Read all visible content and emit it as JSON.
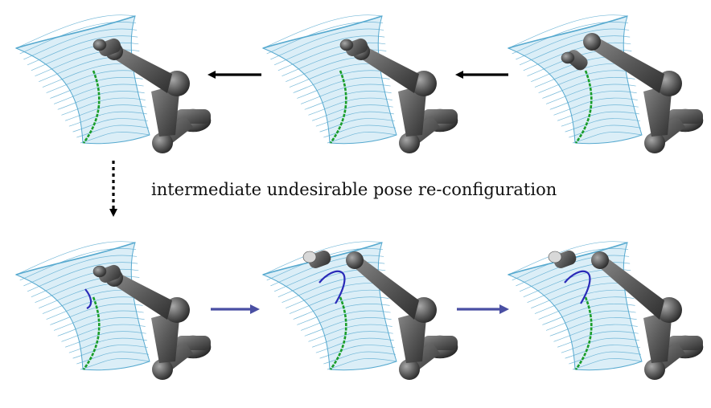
{
  "caption": "intermediate undesirable pose re-configuration",
  "colors": {
    "surface": "#56a9cf",
    "surface_fill": "#dbeef7",
    "green_path": "#1a9e2a",
    "blue_path": "#2a2ab8",
    "robot": "#5a5a5a",
    "robot_dark": "#333333",
    "arrow_black": "#000000",
    "arrow_blue": "#4a4fa3"
  },
  "panels": [
    {
      "name": "top-left",
      "pose": "aligned",
      "blue_path": false
    },
    {
      "name": "top-middle",
      "pose": "aligned",
      "blue_path": false
    },
    {
      "name": "top-right",
      "pose": "start",
      "blue_path": false
    },
    {
      "name": "bottom-left",
      "pose": "aligned",
      "blue_path": true
    },
    {
      "name": "bottom-middle",
      "pose": "lifted",
      "blue_path": true
    },
    {
      "name": "bottom-right",
      "pose": "lifted",
      "blue_path": true
    }
  ],
  "arrows": [
    {
      "name": "top-arrow-1",
      "direction": "left",
      "color": "arrow_black",
      "style": "solid"
    },
    {
      "name": "top-arrow-2",
      "direction": "left",
      "color": "arrow_black",
      "style": "solid"
    },
    {
      "name": "down-arrow",
      "direction": "down",
      "color": "arrow_black",
      "style": "dotted"
    },
    {
      "name": "bottom-arrow-1",
      "direction": "right",
      "color": "arrow_blue",
      "style": "solid"
    },
    {
      "name": "bottom-arrow-2",
      "direction": "right",
      "color": "arrow_blue",
      "style": "solid"
    }
  ]
}
